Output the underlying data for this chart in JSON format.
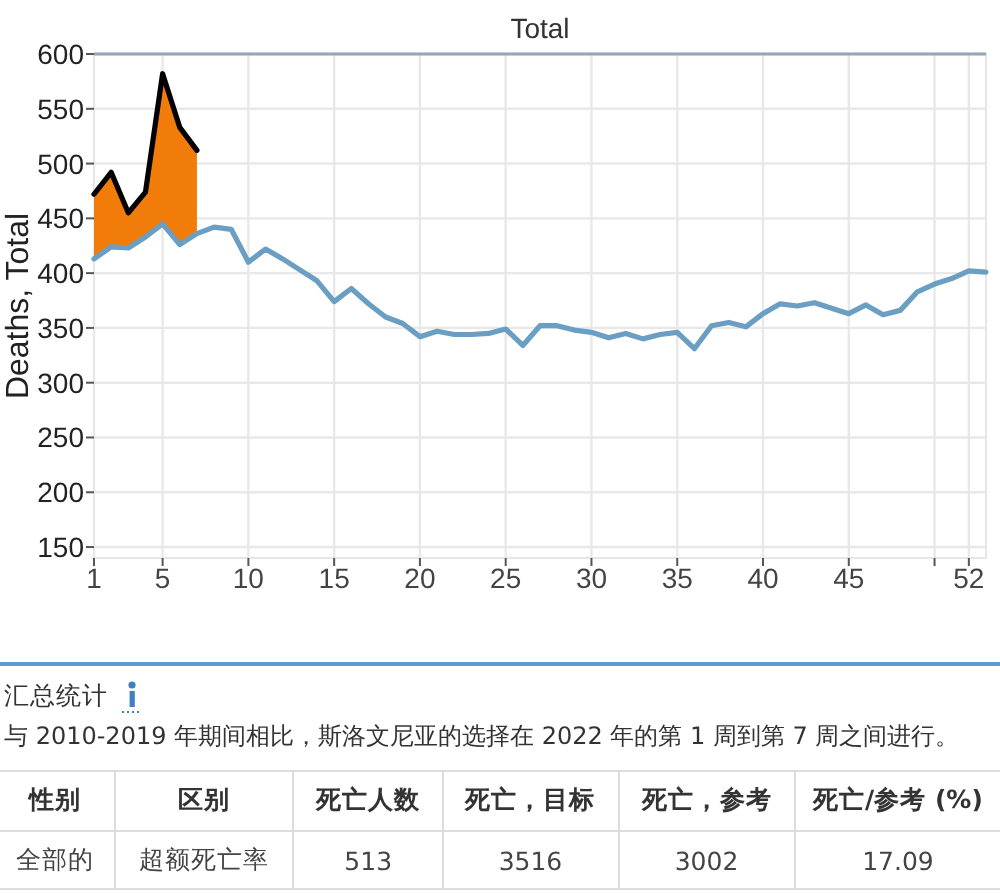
{
  "chart_data": [
    {
      "type": "line",
      "title": "Total",
      "ylabel": "Deaths, Total",
      "xlim": [
        1,
        53
      ],
      "xticks": [
        1,
        5,
        10,
        15,
        20,
        25,
        30,
        35,
        40,
        45,
        {
          "value": 50,
          "label": null
        },
        52
      ],
      "ylim": [
        140,
        600
      ],
      "yticks": [
        150,
        200,
        250,
        300,
        350,
        400,
        450,
        500,
        550,
        600
      ],
      "grid": true,
      "series": [
        {
          "type": "line",
          "color": "#6a9ec2",
          "x": [
            1,
            2,
            3,
            4,
            5,
            6,
            7,
            8,
            9,
            10,
            11,
            12,
            13,
            14,
            15,
            16,
            17,
            18,
            19,
            20,
            21,
            22,
            23,
            24,
            25,
            26,
            27,
            28,
            29,
            30,
            31,
            32,
            33,
            34,
            35,
            36,
            37,
            38,
            39,
            40,
            41,
            42,
            43,
            44,
            45,
            46,
            47,
            48,
            49,
            50,
            51,
            52,
            53
          ],
          "values": [
            413,
            424,
            423,
            433,
            445,
            426,
            436,
            442,
            440,
            410,
            422,
            413,
            403,
            393,
            374,
            386,
            372,
            360,
            354,
            342,
            347,
            344,
            344,
            345,
            349,
            334,
            352,
            352,
            348,
            346,
            341,
            345,
            340,
            344,
            346,
            331,
            352,
            355,
            351,
            363,
            372,
            370,
            373,
            368,
            363,
            371,
            362,
            366,
            383,
            390,
            395,
            402,
            401
          ]
        },
        {
          "type": "line",
          "color": "#000000",
          "x": [
            1,
            2,
            3,
            4,
            5,
            6,
            7
          ],
          "values": [
            472,
            492,
            455,
            474,
            582,
            533,
            512
          ],
          "lower": [
            413,
            424,
            423,
            433,
            445,
            426,
            436
          ],
          "upper": [
            472,
            492,
            455,
            474,
            582,
            533,
            512
          ]
        }
      ]
    },
    {
      "type": "other",
      "title": "汇总统计",
      "subtitle": "与 2010-2019 年期间相比，斯洛文尼亚的选择在 2022 年的第 1 周到第 7 周之间进行。",
      "categories": [
        "性别",
        "区别",
        "死亡人数",
        "死亡，目标",
        "死亡，参考",
        "死亡/参考 (%)"
      ],
      "cell_labels": [
        [
          "全部的",
          "超额死亡率",
          "513",
          "3516",
          "3002",
          "17.09"
        ]
      ]
    }
  ]
}
